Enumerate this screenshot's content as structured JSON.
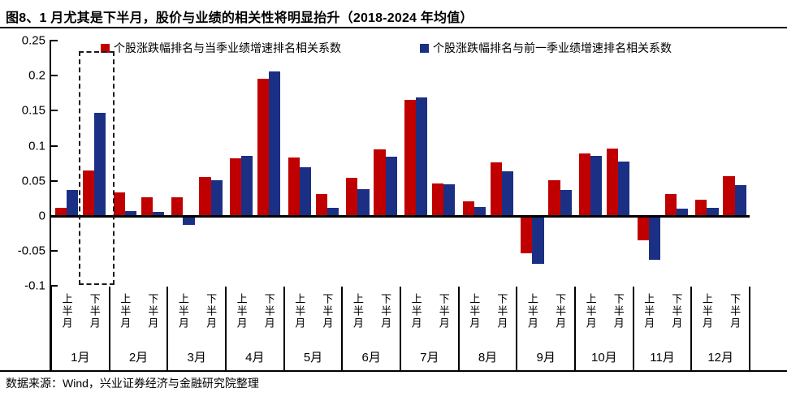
{
  "title": "图8、1 月尤其是下半月，股价与业绩的相关性将明显抬升（2018-2024 年均值）",
  "source": "数据来源：Wind，兴业证券经济与金融研究院整理",
  "colors": {
    "red": "#c00000",
    "blue": "#1b3084",
    "axis": "#000000"
  },
  "chart_data": {
    "type": "bar",
    "title": "图8、1 月尤其是下半月，股价与业绩的相关性将明显抬升（2018-2024 年均值）",
    "xlabel": "",
    "ylabel": "",
    "ylim": [
      -0.1,
      0.25
    ],
    "grid": false,
    "legend_position": "top",
    "y_ticks": [
      0.25,
      0.2,
      0.15,
      0.1,
      0.05,
      0,
      -0.05,
      -0.1
    ],
    "y_tick_labels": [
      "0.25",
      "0.2",
      "0.15",
      "0.1",
      "0.05",
      "0",
      "-0.05",
      "-0.1"
    ],
    "months": [
      "1月",
      "2月",
      "3月",
      "4月",
      "5月",
      "6月",
      "7月",
      "8月",
      "9月",
      "10月",
      "11月",
      "12月"
    ],
    "half_labels": [
      "上半月",
      "下半月"
    ],
    "categories": [
      "1月上半月",
      "1月下半月",
      "2月上半月",
      "2月下半月",
      "3月上半月",
      "3月下半月",
      "4月上半月",
      "4月下半月",
      "5月上半月",
      "5月下半月",
      "6月上半月",
      "6月下半月",
      "7月上半月",
      "7月下半月",
      "8月上半月",
      "8月下半月",
      "9月上半月",
      "9月下半月",
      "10月上半月",
      "10月下半月",
      "11月上半月",
      "11月下半月",
      "12月上半月",
      "12月下半月"
    ],
    "series": [
      {
        "name": "个股涨跌幅排名与当季业绩增速排名相关系数",
        "color": "#c00000",
        "values": [
          0.011,
          0.065,
          0.033,
          0.027,
          0.027,
          0.055,
          0.082,
          0.196,
          0.083,
          0.031,
          0.054,
          0.095,
          0.165,
          0.046,
          0.021,
          0.076,
          -0.053,
          0.051,
          0.089,
          0.096,
          -0.035,
          0.031,
          0.023,
          0.057
        ]
      },
      {
        "name": "个股涨跌幅排名与前一季业绩增速排名相关系数",
        "color": "#1b3084",
        "values": [
          0.037,
          0.147,
          0.007,
          0.006,
          -0.013,
          0.051,
          0.086,
          0.206,
          0.069,
          0.011,
          0.038,
          0.084,
          0.169,
          0.045,
          0.013,
          0.064,
          -0.068,
          0.037,
          0.086,
          0.078,
          -0.063,
          0.01,
          0.011,
          0.044
        ]
      }
    ],
    "annotations": [
      {
        "type": "dashed-box",
        "target": "1月下半月",
        "note": "1月下半月的两根柱被黑色虚线框标出"
      }
    ]
  }
}
